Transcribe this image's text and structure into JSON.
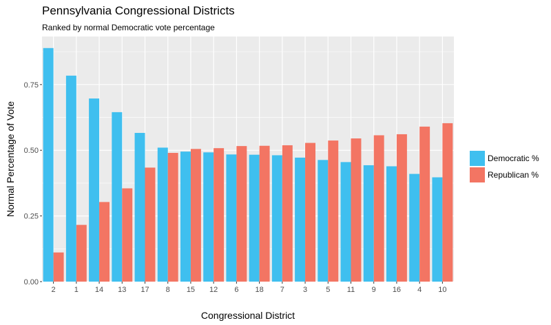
{
  "chart_data": {
    "type": "bar",
    "title": "Pennsylvania Congressional Districts",
    "subtitle": "Ranked by normal Democratic vote percentage",
    "xlabel": "Congressional District",
    "ylabel": "Normal Percentage of Vote",
    "categories": [
      "2",
      "1",
      "14",
      "13",
      "17",
      "8",
      "15",
      "12",
      "6",
      "18",
      "7",
      "3",
      "5",
      "11",
      "9",
      "16",
      "4",
      "10"
    ],
    "series": [
      {
        "name": "Democratic %",
        "color": "#3fbfef",
        "values": [
          0.889,
          0.784,
          0.697,
          0.645,
          0.566,
          0.51,
          0.495,
          0.492,
          0.484,
          0.483,
          0.481,
          0.472,
          0.463,
          0.455,
          0.443,
          0.439,
          0.41,
          0.397
        ]
      },
      {
        "name": "Republican %",
        "color": "#f37563",
        "values": [
          0.111,
          0.216,
          0.303,
          0.355,
          0.434,
          0.49,
          0.505,
          0.508,
          0.516,
          0.517,
          0.519,
          0.528,
          0.537,
          0.545,
          0.557,
          0.561,
          0.59,
          0.603
        ]
      }
    ],
    "yticks": [
      "0.00",
      "0.25",
      "0.50",
      "0.75"
    ],
    "ylim": [
      0,
      0.933
    ],
    "grid": true,
    "legend_position": "right",
    "panel_background": "#ebebeb"
  }
}
